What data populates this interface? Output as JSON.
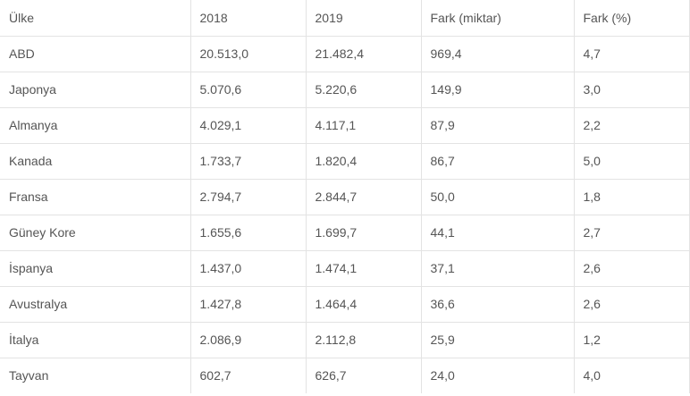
{
  "table": {
    "headers": [
      "Ülke",
      "2018",
      "2019",
      "Fark (miktar)",
      "Fark (%)"
    ],
    "rows": [
      [
        "ABD",
        "20.513,0",
        "21.482,4",
        "969,4",
        "4,7"
      ],
      [
        "Japonya",
        "5.070,6",
        "5.220,6",
        "149,9",
        "3,0"
      ],
      [
        "Almanya",
        "4.029,1",
        "4.117,1",
        "87,9",
        "2,2"
      ],
      [
        "Kanada",
        "1.733,7",
        "1.820,4",
        "86,7",
        "5,0"
      ],
      [
        "Fransa",
        "2.794,7",
        "2.844,7",
        "50,0",
        "1,8"
      ],
      [
        "Güney Kore",
        "1.655,6",
        "1.699,7",
        "44,1",
        "2,7"
      ],
      [
        "İspanya",
        "1.437,0",
        "1.474,1",
        "37,1",
        "2,6"
      ],
      [
        "Avustralya",
        "1.427,8",
        "1.464,4",
        "36,6",
        "2,6"
      ],
      [
        "İtalya",
        "2.086,9",
        "2.112,8",
        "25,9",
        "1,2"
      ],
      [
        "Tayvan",
        "602,7",
        "626,7",
        "24,0",
        "4,0"
      ]
    ]
  }
}
